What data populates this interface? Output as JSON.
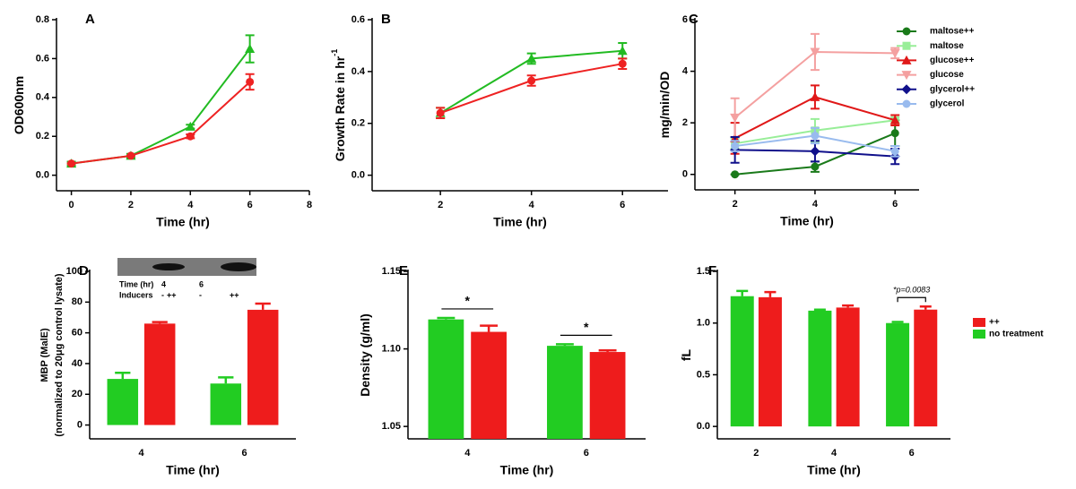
{
  "chart_data": [
    {
      "type": "line",
      "letter": "A",
      "xlabel": "Time (hr)",
      "ylabel": "OD600nm",
      "x": [
        0,
        2,
        4,
        6
      ],
      "xlim": [
        -0.5,
        8
      ],
      "xticks": [
        0,
        2,
        4,
        6,
        8
      ],
      "ylim": [
        -0.08,
        0.8
      ],
      "yticks": [
        {
          "value": 0,
          "label": "0.0"
        },
        0.2,
        0.4,
        0.6,
        0.8
      ],
      "series": [
        {
          "color": "#22bb22",
          "marker": "triangle",
          "values": [
            0.06,
            0.1,
            0.25,
            0.65
          ],
          "errors": [
            0.01,
            0.01,
            0.01,
            0.07
          ]
        },
        {
          "color": "#ee2222",
          "marker": "circle",
          "values": [
            0.06,
            0.1,
            0.2,
            0.48
          ],
          "errors": [
            0,
            0,
            0.01,
            0.04
          ]
        }
      ]
    },
    {
      "type": "line",
      "letter": "B",
      "xlabel": "Time (hr)",
      "ylabel": "Growth Rate in hr",
      "ylabel_sup": "-1",
      "x": [
        2,
        4,
        6
      ],
      "xlim": [
        0.5,
        7
      ],
      "xticks": [
        2,
        4,
        6
      ],
      "ylim": [
        -0.06,
        0.6
      ],
      "yticks": [
        {
          "value": 0,
          "label": "0.0"
        },
        0.2,
        0.4,
        0.6
      ],
      "series": [
        {
          "color": "#22bb22",
          "marker": "triangle",
          "values": [
            0.24,
            0.45,
            0.48
          ],
          "errors": [
            0.02,
            0.02,
            0.03
          ]
        },
        {
          "color": "#ee2222",
          "marker": "circle",
          "values": [
            0.24,
            0.365,
            0.43
          ],
          "errors": [
            0.02,
            0.02,
            0.02
          ]
        }
      ]
    },
    {
      "type": "line",
      "letter": "C",
      "xlabel": "Time (hr)",
      "ylabel": "mg/min/OD",
      "x": [
        2,
        4,
        6
      ],
      "xlim": [
        1,
        6.6
      ],
      "xticks": [
        2,
        4,
        6
      ],
      "ylim": [
        -0.6,
        6
      ],
      "yticks": [
        0,
        2,
        4,
        6
      ],
      "legend": "top-right",
      "series": [
        {
          "name": "maltose++",
          "color": "#1a7a1a",
          "marker": "circle",
          "values": [
            0,
            0.3,
            1.6
          ],
          "errors": [
            0,
            0.2,
            0.5
          ]
        },
        {
          "name": "maltose",
          "color": "#98ee98",
          "marker": "square",
          "values": [
            1.2,
            1.7,
            2.1
          ],
          "errors": [
            0.2,
            0.45,
            0.1
          ]
        },
        {
          "name": "glucose++",
          "color": "#e01818",
          "marker": "triangle",
          "values": [
            1.4,
            3.0,
            2.1
          ],
          "errors": [
            0.6,
            0.45,
            0.2
          ]
        },
        {
          "name": "glucose",
          "color": "#f4a0a0",
          "marker": "triangle-down",
          "values": [
            2.2,
            4.75,
            4.7
          ],
          "errors": [
            0.75,
            0.7,
            0.2
          ]
        },
        {
          "name": "glycerol++",
          "color": "#10108b",
          "marker": "diamond",
          "values": [
            0.95,
            0.9,
            0.7
          ],
          "errors": [
            0.5,
            0.4,
            0.3
          ]
        },
        {
          "name": "glycerol",
          "color": "#99bbee",
          "marker": "circle",
          "values": [
            1.1,
            1.5,
            0.9
          ],
          "errors": [
            0.2,
            0.3,
            0.2
          ]
        }
      ]
    },
    {
      "type": "bar",
      "letter": "D",
      "xlabel": "Time (hr)",
      "ylabel": [
        "MBP (MalE)",
        "(normalized to 20μg control lysate)"
      ],
      "categories": [
        "4",
        "6"
      ],
      "ylim": [
        -9,
        100
      ],
      "yticks": [
        0,
        20,
        40,
        60,
        80,
        100
      ],
      "inset_rows": [
        [
          "Time (hr)",
          "4",
          "6"
        ],
        [
          "Inducers",
          "-",
          "++",
          "-",
          "++"
        ]
      ],
      "series": [
        {
          "color": "#22cc22",
          "values": [
            30,
            27
          ],
          "errors": [
            4,
            4
          ]
        },
        {
          "color": "#ee1c1c",
          "values": [
            66,
            75
          ],
          "errors": [
            1,
            4
          ]
        }
      ]
    },
    {
      "type": "bar",
      "letter": "E",
      "xlabel": "Time (hr)",
      "ylabel": "Density (g/ml)",
      "categories": [
        "4",
        "6"
      ],
      "ylim": [
        1.042,
        1.15
      ],
      "yticks": [
        1.05,
        {
          "value": 1.1,
          "label": "1.10"
        },
        1.15
      ],
      "significance": [
        "*",
        "*"
      ],
      "series": [
        {
          "color": "#22cc22",
          "values": [
            1.119,
            1.102
          ],
          "errors": [
            0.001,
            0.001
          ]
        },
        {
          "color": "#ee1c1c",
          "values": [
            1.111,
            1.098
          ],
          "errors": [
            0.004,
            0.001
          ]
        }
      ]
    },
    {
      "type": "bar",
      "letter": "F",
      "xlabel": "Time (hr)",
      "ylabel": "fL",
      "categories": [
        "2",
        "4",
        "6"
      ],
      "ylim": [
        -0.12,
        1.5
      ],
      "yticks": [
        {
          "value": 0,
          "label": "0.0"
        },
        0.5,
        {
          "value": 1,
          "label": "1.0"
        },
        1.5
      ],
      "significance": [
        null,
        null,
        "*p=0.0083"
      ],
      "legend": "right",
      "series": [
        {
          "name": "no treatment",
          "color": "#22cc22",
          "values": [
            1.26,
            1.12,
            1.0
          ],
          "errors": [
            0.05,
            0.01,
            0.01
          ]
        },
        {
          "name": "++",
          "color": "#ee1c1c",
          "values": [
            1.25,
            1.15,
            1.13
          ],
          "errors": [
            0.05,
            0.02,
            0.03
          ]
        }
      ]
    }
  ]
}
